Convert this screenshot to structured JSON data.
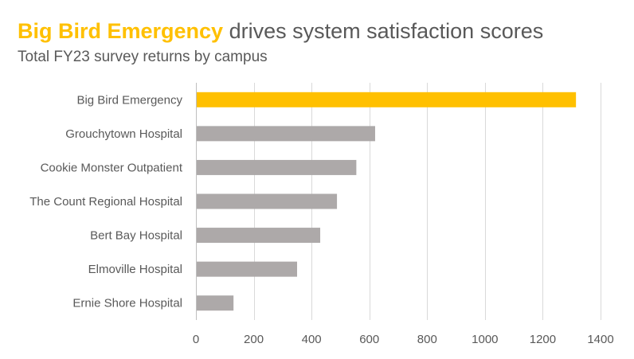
{
  "header": {
    "title_highlight": "Big Bird Emergency",
    "title_rest": "drives system satisfaction scores",
    "subtitle": "Total FY23 survey returns by campus"
  },
  "colors": {
    "highlight": "#FFC000",
    "default_bar": "#ADA9A9",
    "text": "#595959",
    "grid": "#D9D9D9"
  },
  "chart_data": {
    "type": "bar",
    "orientation": "horizontal",
    "title": "Big Bird Emergency drives system satisfaction scores",
    "subtitle": "Total FY23 survey returns by campus",
    "categories": [
      "Big Bird Emergency",
      "Grouchytown Hospital",
      "Cookie Monster Outpatient",
      "The Count Regional Hospital",
      "Bert Bay Hospital",
      "Elmoville Hospital",
      "Ernie Shore Hospital"
    ],
    "values": [
      1315,
      620,
      555,
      488,
      430,
      350,
      130
    ],
    "highlighted_category": "Big Bird Emergency",
    "xlim": [
      0,
      1400
    ],
    "xticks": [
      0,
      200,
      400,
      600,
      800,
      1000,
      1200,
      1400
    ],
    "grid": true,
    "legend": "none"
  }
}
